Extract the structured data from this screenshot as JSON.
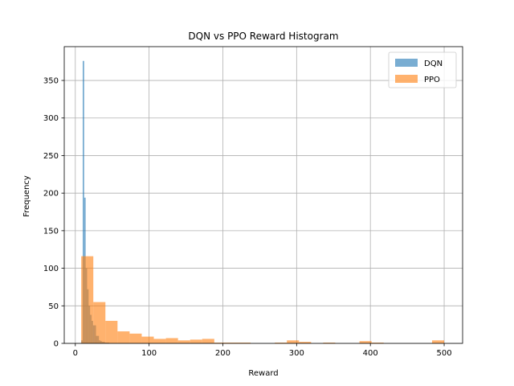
{
  "chart_data": {
    "type": "bar",
    "title": "DQN vs PPO Reward Histogram",
    "xlabel": "Reward",
    "ylabel": "Frequency",
    "xlim": [
      -15,
      525
    ],
    "ylim": [
      0,
      395
    ],
    "xticks": [
      0,
      100,
      200,
      300,
      400,
      500
    ],
    "yticks": [
      0,
      50,
      100,
      150,
      200,
      250,
      300,
      350
    ],
    "grid": true,
    "legend_position": "top-right",
    "series": [
      {
        "name": "DQN",
        "color": "#1f77b4",
        "alpha": 0.6,
        "bins": [
          {
            "x0": 8,
            "x1": 10,
            "count": 4
          },
          {
            "x0": 10,
            "x1": 12,
            "count": 376
          },
          {
            "x0": 12,
            "x1": 14,
            "count": 194
          },
          {
            "x0": 14,
            "x1": 16,
            "count": 100
          },
          {
            "x0": 16,
            "x1": 18,
            "count": 72
          },
          {
            "x0": 18,
            "x1": 20,
            "count": 50
          },
          {
            "x0": 20,
            "x1": 22,
            "count": 38
          },
          {
            "x0": 22,
            "x1": 24,
            "count": 30
          },
          {
            "x0": 24,
            "x1": 26,
            "count": 24
          },
          {
            "x0": 26,
            "x1": 28,
            "count": 24
          },
          {
            "x0": 28,
            "x1": 30,
            "count": 10
          },
          {
            "x0": 30,
            "x1": 32,
            "count": 10
          },
          {
            "x0": 32,
            "x1": 34,
            "count": 4
          },
          {
            "x0": 34,
            "x1": 36,
            "count": 3
          },
          {
            "x0": 36,
            "x1": 40,
            "count": 2
          },
          {
            "x0": 40,
            "x1": 46,
            "count": 1
          }
        ]
      },
      {
        "name": "PPO",
        "color": "#ff7f0e",
        "alpha": 0.6,
        "bins": [
          {
            "x0": 8,
            "x1": 24.4,
            "count": 116
          },
          {
            "x0": 24.4,
            "x1": 40.8,
            "count": 55
          },
          {
            "x0": 40.8,
            "x1": 57.2,
            "count": 30
          },
          {
            "x0": 57.2,
            "x1": 73.6,
            "count": 16
          },
          {
            "x0": 73.6,
            "x1": 90.0,
            "count": 13
          },
          {
            "x0": 90.0,
            "x1": 106.4,
            "count": 9
          },
          {
            "x0": 106.4,
            "x1": 122.8,
            "count": 6
          },
          {
            "x0": 122.8,
            "x1": 139.2,
            "count": 7
          },
          {
            "x0": 139.2,
            "x1": 155.6,
            "count": 4
          },
          {
            "x0": 155.6,
            "x1": 172.0,
            "count": 5
          },
          {
            "x0": 172.0,
            "x1": 188.4,
            "count": 6
          },
          {
            "x0": 188.4,
            "x1": 204.8,
            "count": 1
          },
          {
            "x0": 204.8,
            "x1": 221.2,
            "count": 1
          },
          {
            "x0": 221.2,
            "x1": 237.6,
            "count": 1
          },
          {
            "x0": 237.6,
            "x1": 254.0,
            "count": 0
          },
          {
            "x0": 254.0,
            "x1": 270.4,
            "count": 0
          },
          {
            "x0": 270.4,
            "x1": 286.8,
            "count": 1
          },
          {
            "x0": 286.8,
            "x1": 303.2,
            "count": 4
          },
          {
            "x0": 303.2,
            "x1": 319.6,
            "count": 2
          },
          {
            "x0": 319.6,
            "x1": 336.0,
            "count": 0
          },
          {
            "x0": 336.0,
            "x1": 352.4,
            "count": 1
          },
          {
            "x0": 352.4,
            "x1": 368.8,
            "count": 0
          },
          {
            "x0": 368.8,
            "x1": 385.2,
            "count": 0
          },
          {
            "x0": 385.2,
            "x1": 401.6,
            "count": 3
          },
          {
            "x0": 401.6,
            "x1": 418.0,
            "count": 1
          },
          {
            "x0": 418.0,
            "x1": 434.4,
            "count": 0
          },
          {
            "x0": 434.4,
            "x1": 450.8,
            "count": 0
          },
          {
            "x0": 450.8,
            "x1": 467.2,
            "count": 0
          },
          {
            "x0": 467.2,
            "x1": 483.6,
            "count": 0
          },
          {
            "x0": 483.6,
            "x1": 500.0,
            "count": 4
          }
        ]
      }
    ]
  }
}
